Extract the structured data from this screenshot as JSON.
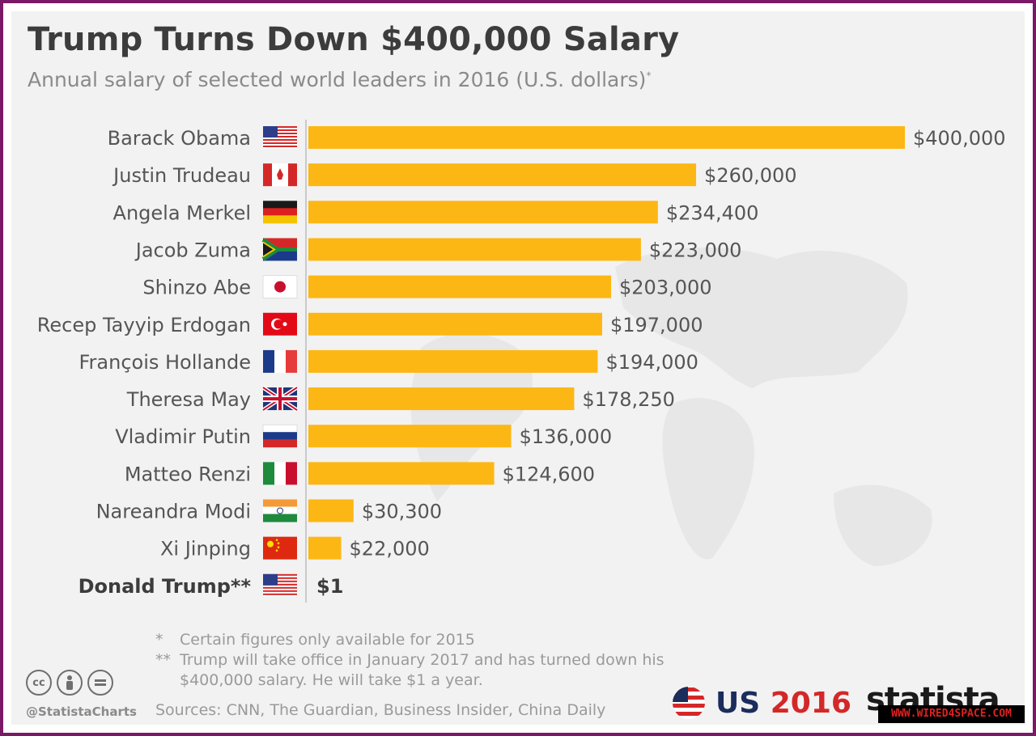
{
  "header": {
    "title": "Trump Turns Down $400,000 Salary",
    "subtitle": "Annual salary of selected world leaders in 2016 (U.S. dollars)",
    "subtitle_mark": "*"
  },
  "chart_data": {
    "type": "bar",
    "orientation": "horizontal",
    "title": "Trump Turns Down $400,000 Salary",
    "xlabel": "",
    "ylabel": "",
    "xlim": [
      0,
      400000
    ],
    "categories": [
      "Barack Obama",
      "Justin Trudeau",
      "Angela Merkel",
      "Jacob Zuma",
      "Shinzo Abe",
      "Recep Tayyip Erdogan",
      "François Hollande",
      "Theresa May",
      "Vladimir Putin",
      "Matteo Renzi",
      "Nareandra Modi",
      "Xi Jinping",
      "Donald Trump**"
    ],
    "values": [
      400000,
      260000,
      234400,
      223000,
      203000,
      197000,
      194000,
      178250,
      136000,
      124600,
      30300,
      22000,
      1
    ],
    "value_labels": [
      "$400,000",
      "$260,000",
      "$234,400",
      "$223,000",
      "$203,000",
      "$197,000",
      "$194,000",
      "$178,250",
      "$136,000",
      "$124,600",
      "$30,300",
      "$22,000",
      "$1"
    ],
    "flags": [
      "us",
      "ca",
      "de",
      "za",
      "jp",
      "tr",
      "fr",
      "gb",
      "ru",
      "it",
      "in",
      "cn",
      "us"
    ],
    "bar_color": "#fdb714",
    "highlight_category": "Donald Trump**"
  },
  "footnotes": [
    {
      "mark": "*",
      "text": "Certain figures only available for 2015"
    },
    {
      "mark": "**",
      "text": "Trump will take office in January 2017 and has turned down his $400,000 salary. He will take $1 a year."
    }
  ],
  "sources": "Sources: CNN, The Guardian, Business Insider, China Daily",
  "branding": {
    "handle": "@StatistaCharts",
    "cc_icons": [
      "cc",
      "by",
      "nd"
    ],
    "us_prefix": "US",
    "us_year": "2016",
    "statista": "statista",
    "watermark": "WWW.WIRED4SPACE.COM"
  }
}
